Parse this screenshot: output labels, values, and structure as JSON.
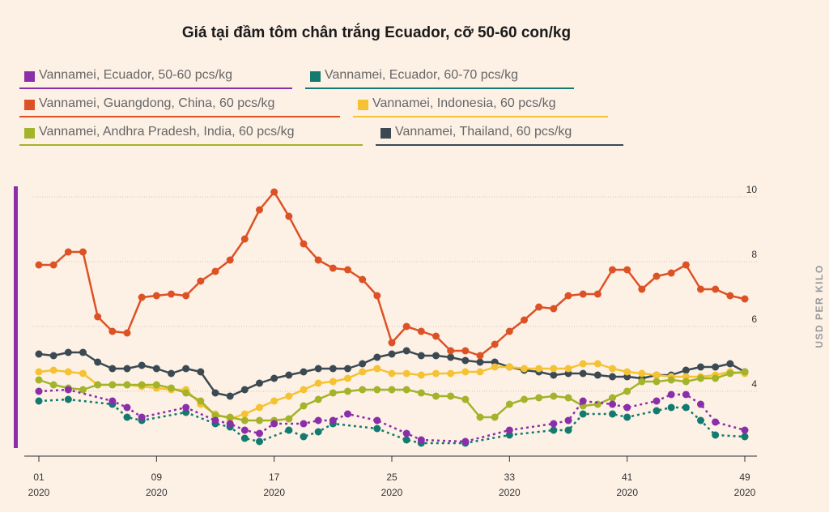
{
  "chart_data": {
    "type": "line",
    "title": "Giá tại đầm tôm chân trắng Ecuador, cỡ 50-60 con/kg",
    "ylabel": "USD PER KILO",
    "xlabel": "",
    "ylim": [
      2,
      10
    ],
    "yticks": [
      4,
      6,
      8,
      10
    ],
    "xlim": [
      1,
      49
    ],
    "xticks": [
      {
        "week": 1,
        "label": "01",
        "year": "2020"
      },
      {
        "week": 9,
        "label": "09",
        "year": "2020"
      },
      {
        "week": 17,
        "label": "17",
        "year": "2020"
      },
      {
        "week": 25,
        "label": "25",
        "year": "2020"
      },
      {
        "week": 33,
        "label": "33",
        "year": "2020"
      },
      {
        "week": 41,
        "label": "41",
        "year": "2020"
      },
      {
        "week": 49,
        "label": "49",
        "year": "2020"
      }
    ],
    "series": [
      {
        "name": "Vannamei, Ecuador, 50-60 pcs/kg",
        "color": "#8a2eaa",
        "dotted": true,
        "points": [
          [
            1,
            4.0
          ],
          [
            3,
            4.05
          ],
          [
            6,
            3.7
          ],
          [
            7,
            3.5
          ],
          [
            8,
            3.2
          ],
          [
            11,
            3.5
          ],
          [
            13,
            3.1
          ],
          [
            14,
            3.0
          ],
          [
            15,
            2.8
          ],
          [
            16,
            2.7
          ],
          [
            17,
            3.0
          ],
          [
            19,
            3.0
          ],
          [
            20,
            3.1
          ],
          [
            21,
            3.1
          ],
          [
            22,
            3.3
          ],
          [
            24,
            3.1
          ],
          [
            26,
            2.7
          ],
          [
            27,
            2.5
          ],
          [
            30,
            2.45
          ],
          [
            33,
            2.8
          ],
          [
            36,
            3.0
          ],
          [
            37,
            3.1
          ],
          [
            38,
            3.7
          ],
          [
            40,
            3.6
          ],
          [
            41,
            3.5
          ],
          [
            43,
            3.7
          ],
          [
            44,
            3.9
          ],
          [
            45,
            3.9
          ],
          [
            46,
            3.6
          ],
          [
            47,
            3.05
          ],
          [
            49,
            2.8
          ]
        ]
      },
      {
        "name": "Vannamei, Ecuador, 60-70 pcs/kg",
        "color": "#127a6f",
        "dotted": true,
        "points": [
          [
            1,
            3.7
          ],
          [
            3,
            3.75
          ],
          [
            6,
            3.6
          ],
          [
            7,
            3.2
          ],
          [
            8,
            3.1
          ],
          [
            11,
            3.35
          ],
          [
            13,
            3.0
          ],
          [
            14,
            2.9
          ],
          [
            15,
            2.55
          ],
          [
            16,
            2.45
          ],
          [
            18,
            2.8
          ],
          [
            19,
            2.6
          ],
          [
            20,
            2.75
          ],
          [
            21,
            3.0
          ],
          [
            24,
            2.85
          ],
          [
            26,
            2.5
          ],
          [
            27,
            2.4
          ],
          [
            30,
            2.4
          ],
          [
            33,
            2.65
          ],
          [
            36,
            2.8
          ],
          [
            37,
            2.8
          ],
          [
            38,
            3.3
          ],
          [
            40,
            3.3
          ],
          [
            41,
            3.2
          ],
          [
            43,
            3.4
          ],
          [
            44,
            3.5
          ],
          [
            45,
            3.5
          ],
          [
            46,
            3.1
          ],
          [
            47,
            2.65
          ],
          [
            49,
            2.6
          ]
        ]
      },
      {
        "name": "Vannamei, Guangdong, China, 60 pcs/kg",
        "color": "#dd5225",
        "dotted": false,
        "points": [
          [
            1,
            7.9
          ],
          [
            2,
            7.9
          ],
          [
            3,
            8.3
          ],
          [
            4,
            8.3
          ],
          [
            5,
            6.3
          ],
          [
            6,
            5.85
          ],
          [
            7,
            5.8
          ],
          [
            8,
            6.9
          ],
          [
            9,
            6.95
          ],
          [
            10,
            7.0
          ],
          [
            11,
            6.95
          ],
          [
            12,
            7.4
          ],
          [
            13,
            7.7
          ],
          [
            14,
            8.05
          ],
          [
            15,
            8.7
          ],
          [
            16,
            9.6
          ],
          [
            17,
            10.15
          ],
          [
            18,
            9.4
          ],
          [
            19,
            8.55
          ],
          [
            20,
            8.05
          ],
          [
            21,
            7.8
          ],
          [
            22,
            7.75
          ],
          [
            23,
            7.45
          ],
          [
            24,
            6.95
          ],
          [
            25,
            5.5
          ],
          [
            26,
            6.0
          ],
          [
            27,
            5.85
          ],
          [
            28,
            5.7
          ],
          [
            29,
            5.25
          ],
          [
            30,
            5.25
          ],
          [
            31,
            5.1
          ],
          [
            32,
            5.45
          ],
          [
            33,
            5.85
          ],
          [
            34,
            6.2
          ],
          [
            35,
            6.6
          ],
          [
            36,
            6.55
          ],
          [
            37,
            6.95
          ],
          [
            38,
            7.0
          ],
          [
            39,
            7.0
          ],
          [
            40,
            7.75
          ],
          [
            41,
            7.75
          ],
          [
            42,
            7.15
          ],
          [
            43,
            7.55
          ],
          [
            44,
            7.65
          ],
          [
            45,
            7.9
          ],
          [
            46,
            7.15
          ],
          [
            47,
            7.15
          ],
          [
            48,
            6.95
          ],
          [
            49,
            6.85
          ]
        ]
      },
      {
        "name": "Vannamei, Indonesia, 60 pcs/kg",
        "color": "#f4c232",
        "dotted": false,
        "points": [
          [
            1,
            4.6
          ],
          [
            2,
            4.65
          ],
          [
            3,
            4.6
          ],
          [
            4,
            4.55
          ],
          [
            5,
            4.2
          ],
          [
            6,
            4.2
          ],
          [
            7,
            4.2
          ],
          [
            8,
            4.15
          ],
          [
            9,
            4.1
          ],
          [
            10,
            4.05
          ],
          [
            11,
            4.05
          ],
          [
            12,
            3.6
          ],
          [
            13,
            3.3
          ],
          [
            14,
            3.15
          ],
          [
            15,
            3.3
          ],
          [
            16,
            3.5
          ],
          [
            17,
            3.7
          ],
          [
            18,
            3.85
          ],
          [
            19,
            4.05
          ],
          [
            20,
            4.25
          ],
          [
            21,
            4.3
          ],
          [
            22,
            4.4
          ],
          [
            23,
            4.6
          ],
          [
            24,
            4.7
          ],
          [
            25,
            4.55
          ],
          [
            26,
            4.55
          ],
          [
            27,
            4.5
          ],
          [
            28,
            4.55
          ],
          [
            29,
            4.55
          ],
          [
            30,
            4.6
          ],
          [
            31,
            4.6
          ],
          [
            32,
            4.75
          ],
          [
            33,
            4.75
          ],
          [
            34,
            4.7
          ],
          [
            35,
            4.7
          ],
          [
            36,
            4.7
          ],
          [
            37,
            4.7
          ],
          [
            38,
            4.85
          ],
          [
            39,
            4.85
          ],
          [
            40,
            4.7
          ],
          [
            41,
            4.6
          ],
          [
            42,
            4.55
          ],
          [
            43,
            4.5
          ],
          [
            44,
            4.45
          ],
          [
            45,
            4.45
          ],
          [
            46,
            4.45
          ],
          [
            47,
            4.5
          ],
          [
            48,
            4.6
          ],
          [
            49,
            4.55
          ]
        ]
      },
      {
        "name": "Vannamei, Andhra Pradesh, India, 60 pcs/kg",
        "color": "#a3b32a",
        "dotted": false,
        "points": [
          [
            1,
            4.35
          ],
          [
            2,
            4.2
          ],
          [
            3,
            4.1
          ],
          [
            4,
            4.05
          ],
          [
            5,
            4.2
          ],
          [
            6,
            4.2
          ],
          [
            7,
            4.2
          ],
          [
            8,
            4.2
          ],
          [
            9,
            4.2
          ],
          [
            10,
            4.1
          ],
          [
            11,
            3.95
          ],
          [
            12,
            3.7
          ],
          [
            13,
            3.25
          ],
          [
            14,
            3.2
          ],
          [
            15,
            3.1
          ],
          [
            16,
            3.1
          ],
          [
            17,
            3.1
          ],
          [
            18,
            3.15
          ],
          [
            19,
            3.55
          ],
          [
            20,
            3.75
          ],
          [
            21,
            3.95
          ],
          [
            22,
            4.0
          ],
          [
            23,
            4.05
          ],
          [
            24,
            4.05
          ],
          [
            25,
            4.05
          ],
          [
            26,
            4.05
          ],
          [
            27,
            3.95
          ],
          [
            28,
            3.85
          ],
          [
            29,
            3.85
          ],
          [
            30,
            3.75
          ],
          [
            31,
            3.2
          ],
          [
            32,
            3.2
          ],
          [
            33,
            3.6
          ],
          [
            34,
            3.75
          ],
          [
            35,
            3.8
          ],
          [
            36,
            3.85
          ],
          [
            37,
            3.8
          ],
          [
            38,
            3.55
          ],
          [
            39,
            3.6
          ],
          [
            40,
            3.8
          ],
          [
            41,
            4.0
          ],
          [
            42,
            4.3
          ],
          [
            43,
            4.3
          ],
          [
            44,
            4.35
          ],
          [
            45,
            4.3
          ],
          [
            46,
            4.4
          ],
          [
            47,
            4.4
          ],
          [
            48,
            4.55
          ],
          [
            49,
            4.6
          ]
        ]
      },
      {
        "name": "Vannamei, Thailand, 60 pcs/kg",
        "color": "#3b4a52",
        "dotted": false,
        "points": [
          [
            1,
            5.15
          ],
          [
            2,
            5.1
          ],
          [
            3,
            5.2
          ],
          [
            4,
            5.2
          ],
          [
            5,
            4.9
          ],
          [
            6,
            4.7
          ],
          [
            7,
            4.7
          ],
          [
            8,
            4.8
          ],
          [
            9,
            4.7
          ],
          [
            10,
            4.55
          ],
          [
            11,
            4.7
          ],
          [
            12,
            4.6
          ],
          [
            13,
            3.95
          ],
          [
            14,
            3.85
          ],
          [
            15,
            4.05
          ],
          [
            16,
            4.25
          ],
          [
            17,
            4.4
          ],
          [
            18,
            4.5
          ],
          [
            19,
            4.6
          ],
          [
            20,
            4.7
          ],
          [
            21,
            4.7
          ],
          [
            22,
            4.7
          ],
          [
            23,
            4.85
          ],
          [
            24,
            5.05
          ],
          [
            25,
            5.15
          ],
          [
            26,
            5.25
          ],
          [
            27,
            5.1
          ],
          [
            28,
            5.1
          ],
          [
            29,
            5.05
          ],
          [
            30,
            4.95
          ],
          [
            31,
            4.9
          ],
          [
            32,
            4.9
          ],
          [
            33,
            4.75
          ],
          [
            34,
            4.65
          ],
          [
            35,
            4.6
          ],
          [
            36,
            4.5
          ],
          [
            37,
            4.55
          ],
          [
            38,
            4.55
          ],
          [
            39,
            4.5
          ],
          [
            40,
            4.45
          ],
          [
            41,
            4.45
          ],
          [
            42,
            4.4
          ],
          [
            43,
            4.5
          ],
          [
            44,
            4.5
          ],
          [
            45,
            4.65
          ],
          [
            46,
            4.75
          ],
          [
            47,
            4.75
          ],
          [
            48,
            4.85
          ],
          [
            49,
            4.6
          ]
        ]
      }
    ]
  },
  "legend": [
    {
      "label": "Vannamei, Ecuador, 50-60 pcs/kg",
      "color": "#8a2eaa"
    },
    {
      "label": "Vannamei, Ecuador, 60-70 pcs/kg",
      "color": "#127a6f"
    },
    {
      "label": "Vannamei, Guangdong, China, 60 pcs/kg",
      "color": "#dd5225"
    },
    {
      "label": "Vannamei, Indonesia, 60 pcs/kg",
      "color": "#f4c232"
    },
    {
      "label": "Vannamei, Andhra Pradesh, India, 60 pcs/kg",
      "color": "#a3b32a"
    },
    {
      "label": "Vannamei, Thailand, 60 pcs/kg",
      "color": "#3b4a52"
    }
  ],
  "accent_color": "#8a2eaa"
}
